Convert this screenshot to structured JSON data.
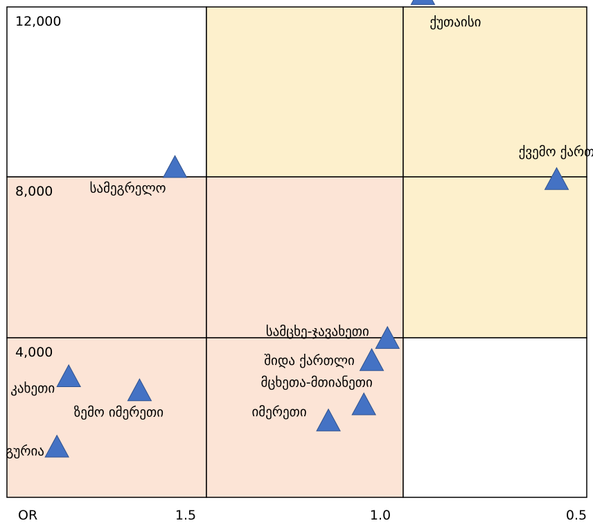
{
  "chart_data": {
    "type": "scatter",
    "title": "",
    "grid_cells": [
      {
        "label": "12,000",
        "fill": "#ffffff"
      },
      {
        "label": "",
        "fill": "#fdf0cc"
      },
      {
        "label": "",
        "fill": "#fdf0cc"
      },
      {
        "label": "8,000",
        "fill": "#fce4d6"
      },
      {
        "label": "",
        "fill": "#fce4d6"
      },
      {
        "label": "",
        "fill": "#fdf0cc"
      },
      {
        "label": "4,000",
        "fill": "#fce4d6"
      },
      {
        "label": "",
        "fill": "#fce4d6"
      },
      {
        "label": "",
        "fill": "#ffffff"
      }
    ],
    "x_axis": {
      "title": "OR",
      "ticks": [
        "1.5",
        "1.0",
        "0.5"
      ],
      "range": [
        2.0,
        0.5
      ],
      "reversed": true
    },
    "y_axis": {
      "ticks": [
        "12,000",
        "8,000",
        "4,000"
      ],
      "range": [
        0,
        14000
      ]
    },
    "marker_color": "#4472c4",
    "points": [
      {
        "name": "ქუთაისი",
        "x": 0.95,
        "y": 12500
      },
      {
        "name": "ქვემო ქართლი",
        "x": 0.61,
        "y": 7900
      },
      {
        "name": "სამეგრელო",
        "x": 1.58,
        "y": 8200
      },
      {
        "name": "სამცხე-ჯავახეთი",
        "x": 1.04,
        "y": 3950
      },
      {
        "name": "შიდა ქართლი",
        "x": 1.08,
        "y": 3400
      },
      {
        "name": "მცხეთა-მთიანეთი",
        "x": 1.1,
        "y": 2300
      },
      {
        "name": "იმერეთი",
        "x": 1.19,
        "y": 1900
      },
      {
        "name": "კახეთი",
        "x": 1.85,
        "y": 3000
      },
      {
        "name": "ზემო იმერეთი",
        "x": 1.67,
        "y": 2650
      },
      {
        "name": "გურია",
        "x": 1.88,
        "y": 1250
      }
    ]
  }
}
